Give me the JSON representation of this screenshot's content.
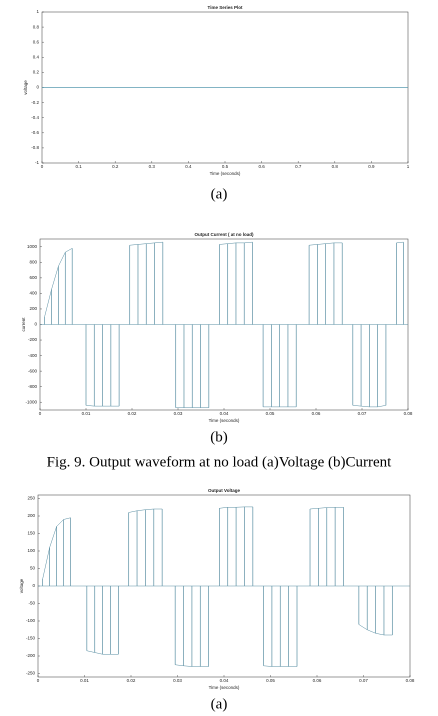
{
  "chart_data": [
    {
      "type": "line",
      "title": "Time Series Plot",
      "xlabel": "Time (seconds)",
      "ylabel": "voltage",
      "x": [
        0,
        1
      ],
      "values": [
        0,
        0
      ],
      "color": "#5a9bb0",
      "xlim": [
        0,
        1
      ],
      "xticks": [
        0,
        0.1,
        0.2,
        0.3,
        0.4,
        0.5,
        0.6,
        0.7,
        0.8,
        0.9,
        1
      ],
      "ylim": [
        -1,
        1
      ],
      "yticks": [
        -1,
        -0.8,
        -0.6,
        -0.4,
        -0.2,
        0,
        0.2,
        0.4,
        0.6,
        0.8,
        1
      ]
    },
    {
      "type": "stem",
      "title": "Output Current ( at no load)",
      "xlabel": "Time (seconds)",
      "ylabel": "current",
      "x": [
        0.001,
        0.0025,
        0.004,
        0.0055,
        0.007,
        0.01,
        0.0118,
        0.0136,
        0.0154,
        0.0172,
        0.0195,
        0.0213,
        0.0231,
        0.0249,
        0.0267,
        0.0295,
        0.0313,
        0.0331,
        0.0349,
        0.0367,
        0.039,
        0.0408,
        0.0426,
        0.0444,
        0.0462,
        0.0485,
        0.0503,
        0.0521,
        0.0539,
        0.0557,
        0.0585,
        0.0603,
        0.0621,
        0.0639,
        0.0657,
        0.068,
        0.0698,
        0.0716,
        0.0734,
        0.0752,
        0.0775,
        0.079
      ],
      "values": [
        100,
        450,
        750,
        930,
        980,
        -1040,
        -1050,
        -1050,
        -1050,
        -1050,
        1020,
        1030,
        1040,
        1050,
        1060,
        -1070,
        -1070,
        -1070,
        -1070,
        -1070,
        1030,
        1040,
        1050,
        1050,
        1060,
        -1060,
        -1060,
        -1060,
        -1060,
        -1060,
        1020,
        1030,
        1040,
        1050,
        1050,
        -1040,
        -1050,
        -1060,
        -1060,
        -1040,
        1050,
        1060
      ],
      "color": "#5a8fa3",
      "xlim": [
        0,
        0.08
      ],
      "xticks": [
        0,
        0.01,
        0.02,
        0.03,
        0.04,
        0.05,
        0.06,
        0.07,
        0.08
      ],
      "ylim": [
        -1100,
        1100
      ],
      "yticks": [
        -1000,
        -800,
        -600,
        -400,
        -200,
        0,
        200,
        400,
        600,
        800,
        1000
      ]
    },
    {
      "type": "stem",
      "title": "Output Voltage",
      "xlabel": "Time (seconds)",
      "ylabel": "voltage",
      "x": [
        0.001,
        0.0025,
        0.004,
        0.0055,
        0.007,
        0.0105,
        0.0122,
        0.0139,
        0.0156,
        0.0173,
        0.0195,
        0.0213,
        0.0231,
        0.0249,
        0.0267,
        0.0295,
        0.0313,
        0.0331,
        0.0349,
        0.0367,
        0.039,
        0.0408,
        0.0426,
        0.0444,
        0.0462,
        0.0485,
        0.0503,
        0.0521,
        0.0539,
        0.0557,
        0.0585,
        0.0603,
        0.0621,
        0.0639,
        0.0657,
        0.069,
        0.0708,
        0.0726,
        0.0744,
        0.0762
      ],
      "values": [
        20,
        110,
        170,
        190,
        195,
        -185,
        -190,
        -195,
        -195,
        -195,
        210,
        215,
        218,
        220,
        220,
        -225,
        -228,
        -230,
        -230,
        -230,
        222,
        225,
        225,
        226,
        226,
        -228,
        -230,
        -230,
        -230,
        -230,
        220,
        222,
        224,
        225,
        225,
        -110,
        -125,
        -135,
        -140,
        -140
      ],
      "color": "#5a8fa3",
      "xlim": [
        0,
        0.08
      ],
      "xticks": [
        0,
        0.01,
        0.02,
        0.03,
        0.04,
        0.05,
        0.06,
        0.07,
        0.08
      ],
      "ylim": [
        -260,
        260
      ],
      "yticks": [
        -250,
        -200,
        -150,
        -100,
        -50,
        0,
        50,
        100,
        150,
        200,
        250
      ]
    }
  ],
  "captions": {
    "fig_a": "(a)",
    "fig_b": "(b)",
    "figure": "Fig. 9. Output waveform at no load (a)Voltage (b)Current",
    "fig_a2": "(a)"
  }
}
